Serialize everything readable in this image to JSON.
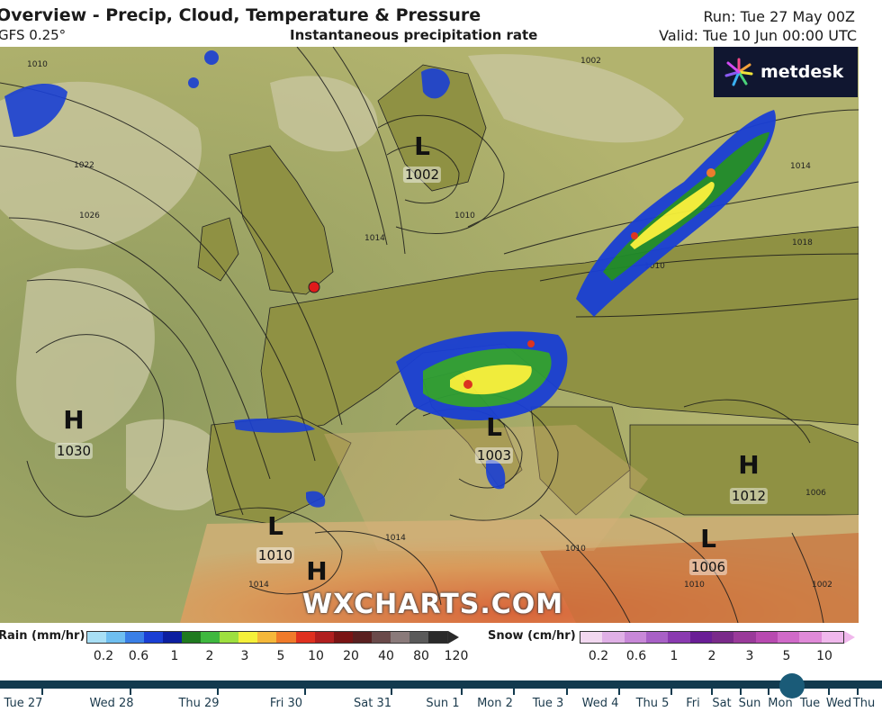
{
  "header": {
    "title": "Overview - Precip, Cloud, Temperature & Pressure",
    "model": "GFS 0.25°",
    "product": "Instantaneous precipitation rate",
    "run": "Run: Tue 27 May 00Z",
    "valid": "Valid: Tue 10 Jun 00:00 UTC"
  },
  "logo": {
    "text": "metdesk"
  },
  "watermark": "WXCHARTS.COM",
  "pressure_centres": [
    {
      "letter": "L",
      "value": "1002"
    },
    {
      "letter": "H",
      "value": "1030"
    },
    {
      "letter": "L",
      "value": "1003"
    },
    {
      "letter": "H",
      "value": "1012"
    },
    {
      "letter": "L",
      "value": "1010"
    },
    {
      "letter": "H",
      "value": ""
    },
    {
      "letter": "L",
      "value": "1006"
    }
  ],
  "isobar_labels": [
    "1010",
    "1022",
    "1026",
    "1014",
    "1018",
    "1010",
    "1014",
    "1002",
    "1006",
    "1010",
    "1014",
    "1010",
    "1014",
    "1002",
    "1010"
  ],
  "rain_legend": {
    "label": "Rain (mm/hr)",
    "ticks": [
      "0.2",
      "0.6",
      "1",
      "2",
      "3",
      "5",
      "10",
      "20",
      "40",
      "80",
      "120"
    ],
    "colors": [
      "#a8dff5",
      "#6fbff0",
      "#3a7fe6",
      "#1a3fd4",
      "#0c1fa0",
      "#1f7a1f",
      "#3fb83f",
      "#9ee03f",
      "#f5f03a",
      "#f5b83a",
      "#f07a2a",
      "#e0301f",
      "#b01f1f",
      "#7a1414",
      "#5a2020",
      "#6a4a4a",
      "#8a7a7a",
      "#5a5a5a",
      "#2a2a2a"
    ]
  },
  "snow_legend": {
    "label": "Snow (cm/hr)",
    "ticks": [
      "0.2",
      "0.6",
      "1",
      "2",
      "3",
      "5",
      "10"
    ],
    "colors": [
      "#f2d8f0",
      "#e0b0e6",
      "#c888d8",
      "#a860c6",
      "#8a3ab0",
      "#6a1e96",
      "#7a2a8a",
      "#9a3a9a",
      "#b84ab0",
      "#d06ac8",
      "#e08ad8",
      "#f0b8ec"
    ]
  },
  "timeline": {
    "days": [
      "Tue 27",
      "Wed 28",
      "Thu 29",
      "Fri 30",
      "Sat 31",
      "Sun 1",
      "Mon 2",
      "Tue 3",
      "Wed 4",
      "Thu 5",
      "Fri",
      "Sat",
      "Sun",
      "Mon",
      "Tue",
      "Wed",
      "Thu"
    ],
    "current": "Tue 10 Jun 00:00",
    "progress": 0.9
  },
  "map_features": {
    "city_marker": "London",
    "city_marker_color": "#e01a1a"
  }
}
